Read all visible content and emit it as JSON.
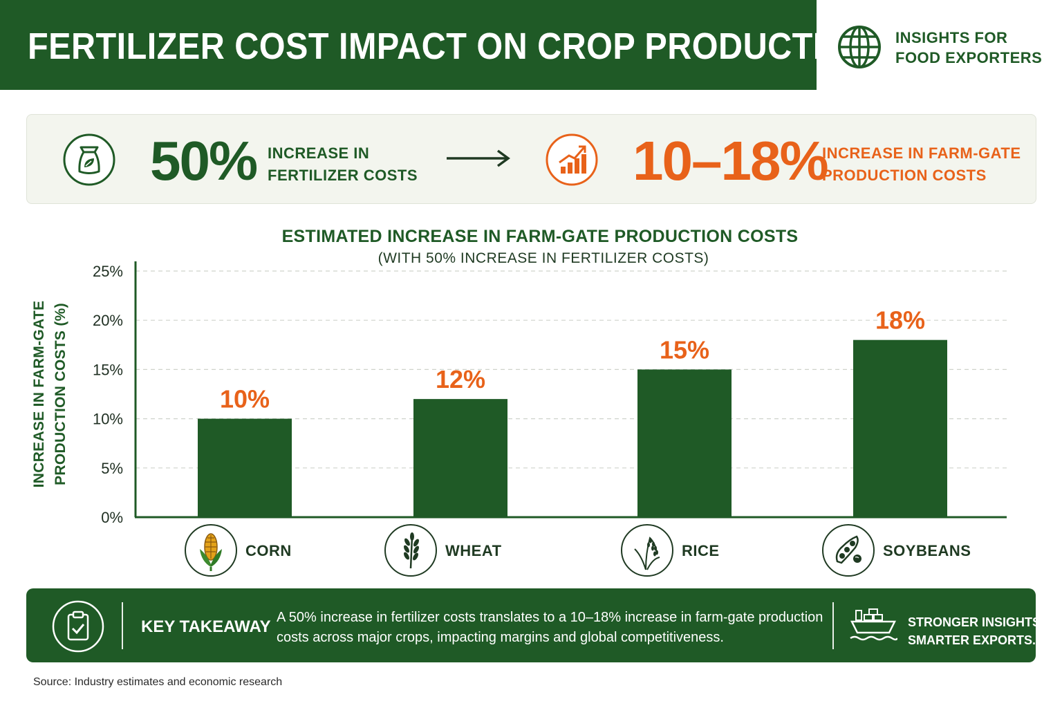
{
  "header": {
    "title": "FERTILIZER COST IMPACT ON CROP PRODUCTION",
    "brand_line1": "INSIGHTS FOR",
    "brand_line2": "FOOD EXPORTERS",
    "brand_icon": "globe-icon"
  },
  "summary": {
    "left_value": "50%",
    "left_label_line1": "INCREASE IN",
    "left_label_line2": "FERTILIZER COSTS",
    "left_icon": "fertilizer-bag-icon",
    "arrow_icon": "arrow-right-icon",
    "right_value": "10–18%",
    "right_label_line1": "INCREASE IN FARM-GATE",
    "right_label_line2": "PRODUCTION COSTS",
    "right_icon": "growth-chart-icon"
  },
  "chart_data": {
    "type": "bar",
    "title": "ESTIMATED INCREASE IN FARM-GATE PRODUCTION COSTS",
    "subtitle": "(WITH 50% INCREASE IN FERTILIZER COSTS)",
    "ylabel": "INCREASE IN FARM-GATE PRODUCTION COSTS (%)",
    "ylabel_line1": "INCREASE IN FARM-GATE",
    "ylabel_line2": "PRODUCTION COSTS (%)",
    "xlabel": "",
    "categories": [
      "CORN",
      "WHEAT",
      "RICE",
      "SOYBEANS"
    ],
    "values": [
      10,
      12,
      15,
      18
    ],
    "data_labels": [
      "10%",
      "12%",
      "15%",
      "18%"
    ],
    "ylim": [
      0,
      25
    ],
    "yticks": [
      0,
      5,
      10,
      15,
      20,
      25
    ],
    "ytick_labels": [
      "0%",
      "5%",
      "10%",
      "15%",
      "20%",
      "25%"
    ],
    "grid": "horizontal dashed",
    "bar_color": "#1f5a26",
    "label_color": "#e8621a",
    "category_icons": [
      "corn-icon",
      "wheat-icon",
      "rice-icon",
      "soybeans-icon"
    ]
  },
  "takeaway": {
    "icon": "clipboard-check-icon",
    "title": "KEY TAKEAWAY",
    "text": "A 50% increase in fertilizer costs translates to a 10–18% increase in farm-gate production costs across major crops, impacting margins and global competitiveness.",
    "ship_icon": "cargo-ship-icon",
    "slogan_line1": "STRONGER INSIGHTS.",
    "slogan_line2": "SMARTER EXPORTS."
  },
  "source": "Source: Industry estimates and economic research",
  "colors": {
    "primary_green": "#1f5a26",
    "accent_orange": "#e8621a",
    "summary_bg": "#f3f5ee"
  }
}
